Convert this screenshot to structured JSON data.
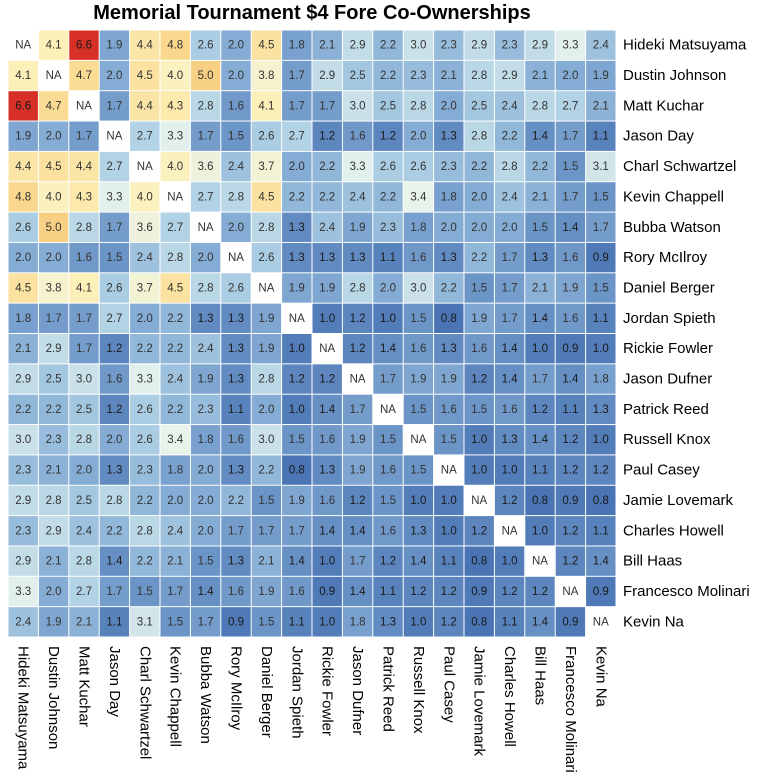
{
  "chart_data": {
    "type": "heatmap",
    "title": "Memorial Tournament $4 Fore Co-Ownerships",
    "xlabel": "",
    "ylabel": "",
    "labels": [
      "Hideki Matsuyama",
      "Dustin Johnson",
      "Matt Kuchar",
      "Jason Day",
      "Charl Schwartzel",
      "Kevin Chappell",
      "Bubba Watson",
      "Rory McIlroy",
      "Daniel Berger",
      "Jordan Spieth",
      "Rickie Fowler",
      "Jason Dufner",
      "Patrick Reed",
      "Russell Knox",
      "Paul Casey",
      "Jamie Lovemark",
      "Charles Howell",
      "Bill Haas",
      "Francesco Molinari",
      "Kevin Na"
    ],
    "missing_label": "NA",
    "color_scale": {
      "low": "#4575b4",
      "mid": "#ffffbf",
      "high": "#d73027",
      "min": 0.8,
      "max": 6.6
    },
    "values": [
      [
        null,
        4.1,
        6.6,
        1.9,
        4.4,
        4.8,
        2.6,
        2.0,
        4.5,
        1.8,
        2.1,
        2.9,
        2.2,
        3.0,
        2.3,
        2.9,
        2.3,
        2.9,
        3.3,
        2.4
      ],
      [
        4.1,
        null,
        4.7,
        2.0,
        4.5,
        4.0,
        5.0,
        2.0,
        3.8,
        1.7,
        2.9,
        2.5,
        2.2,
        2.3,
        2.1,
        2.8,
        2.9,
        2.1,
        2.0,
        1.9
      ],
      [
        6.6,
        4.7,
        null,
        1.7,
        4.4,
        4.3,
        2.8,
        1.6,
        4.1,
        1.7,
        1.7,
        3.0,
        2.5,
        2.8,
        2.0,
        2.5,
        2.4,
        2.8,
        2.7,
        2.1
      ],
      [
        1.9,
        2.0,
        1.7,
        null,
        2.7,
        3.3,
        1.7,
        1.5,
        2.6,
        2.7,
        1.2,
        1.6,
        1.2,
        2.0,
        1.3,
        2.8,
        2.2,
        1.4,
        1.7,
        1.1
      ],
      [
        4.4,
        4.5,
        4.4,
        2.7,
        null,
        4.0,
        3.6,
        2.4,
        3.7,
        2.0,
        2.2,
        3.3,
        2.6,
        2.6,
        2.3,
        2.2,
        2.8,
        2.2,
        1.5,
        3.1
      ],
      [
        4.8,
        4.0,
        4.3,
        3.3,
        4.0,
        null,
        2.7,
        2.8,
        4.5,
        2.2,
        2.2,
        2.4,
        2.2,
        3.4,
        1.8,
        2.0,
        2.4,
        2.1,
        1.7,
        1.5
      ],
      [
        2.6,
        5.0,
        2.8,
        1.7,
        3.6,
        2.7,
        null,
        2.0,
        2.8,
        1.3,
        2.4,
        1.9,
        2.3,
        1.8,
        2.0,
        2.0,
        2.0,
        1.5,
        1.4,
        1.7
      ],
      [
        2.0,
        2.0,
        1.6,
        1.5,
        2.4,
        2.8,
        2.0,
        null,
        2.6,
        1.3,
        1.3,
        1.3,
        1.1,
        1.6,
        1.3,
        2.2,
        1.7,
        1.3,
        1.6,
        0.9
      ],
      [
        4.5,
        3.8,
        4.1,
        2.6,
        3.7,
        4.5,
        2.8,
        2.6,
        null,
        1.9,
        1.9,
        2.8,
        2.0,
        3.0,
        2.2,
        1.5,
        1.7,
        2.1,
        1.9,
        1.5
      ],
      [
        1.8,
        1.7,
        1.7,
        2.7,
        2.0,
        2.2,
        1.3,
        1.3,
        1.9,
        null,
        1.0,
        1.2,
        1.0,
        1.5,
        0.8,
        1.9,
        1.7,
        1.4,
        1.6,
        1.1
      ],
      [
        2.1,
        2.9,
        1.7,
        1.2,
        2.2,
        2.2,
        2.4,
        1.3,
        1.9,
        1.0,
        null,
        1.2,
        1.4,
        1.6,
        1.3,
        1.6,
        1.4,
        1.0,
        0.9,
        1.0
      ],
      [
        2.9,
        2.5,
        3.0,
        1.6,
        3.3,
        2.4,
        1.9,
        1.3,
        2.8,
        1.2,
        1.2,
        null,
        1.7,
        1.9,
        1.9,
        1.2,
        1.4,
        1.7,
        1.4,
        1.8
      ],
      [
        2.2,
        2.2,
        2.5,
        1.2,
        2.6,
        2.2,
        2.3,
        1.1,
        2.0,
        1.0,
        1.4,
        1.7,
        null,
        1.5,
        1.6,
        1.5,
        1.6,
        1.2,
        1.1,
        1.3
      ],
      [
        3.0,
        2.3,
        2.8,
        2.0,
        2.6,
        3.4,
        1.8,
        1.6,
        3.0,
        1.5,
        1.6,
        1.9,
        1.5,
        null,
        1.5,
        1.0,
        1.3,
        1.4,
        1.2,
        1.0
      ],
      [
        2.3,
        2.1,
        2.0,
        1.3,
        2.3,
        1.8,
        2.0,
        1.3,
        2.2,
        0.8,
        1.3,
        1.9,
        1.6,
        1.5,
        null,
        1.0,
        1.0,
        1.1,
        1.2,
        1.2
      ],
      [
        2.9,
        2.8,
        2.5,
        2.8,
        2.2,
        2.0,
        2.0,
        2.2,
        1.5,
        1.9,
        1.6,
        1.2,
        1.5,
        1.0,
        1.0,
        null,
        1.2,
        0.8,
        0.9,
        0.8
      ],
      [
        2.3,
        2.9,
        2.4,
        2.2,
        2.8,
        2.4,
        2.0,
        1.7,
        1.7,
        1.7,
        1.4,
        1.4,
        1.6,
        1.3,
        1.0,
        1.2,
        null,
        1.0,
        1.2,
        1.1
      ],
      [
        2.9,
        2.1,
        2.8,
        1.4,
        2.2,
        2.1,
        1.5,
        1.3,
        2.1,
        1.4,
        1.0,
        1.7,
        1.2,
        1.4,
        1.1,
        0.8,
        1.0,
        null,
        1.2,
        1.4
      ],
      [
        3.3,
        2.0,
        2.7,
        1.7,
        1.5,
        1.7,
        1.4,
        1.6,
        1.9,
        1.6,
        0.9,
        1.4,
        1.1,
        1.2,
        1.2,
        0.9,
        1.2,
        1.2,
        null,
        0.9
      ],
      [
        2.4,
        1.9,
        2.1,
        1.1,
        3.1,
        1.5,
        1.7,
        0.9,
        1.5,
        1.1,
        1.0,
        1.8,
        1.3,
        1.0,
        1.2,
        0.8,
        1.1,
        1.4,
        0.9,
        null
      ]
    ]
  }
}
